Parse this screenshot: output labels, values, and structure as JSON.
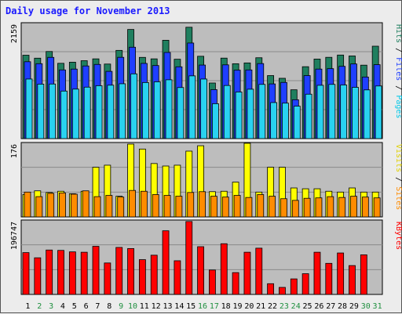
{
  "chart_data": [
    {
      "type": "bar",
      "title": "Daily usage for November 2013",
      "panel": "pages-files-hits",
      "ymax_label": "2159",
      "ylim": [
        0,
        2159
      ],
      "grid": true,
      "right_labels": [
        "Pages",
        "Files",
        "Hits"
      ],
      "categories": [
        "1",
        "2",
        "3",
        "4",
        "5",
        "6",
        "7",
        "8",
        "9",
        "10",
        "11",
        "12",
        "13",
        "14",
        "15",
        "16",
        "17",
        "18",
        "19",
        "20",
        "21",
        "22",
        "23",
        "24",
        "25",
        "26",
        "27",
        "28",
        "29",
        "30",
        "31"
      ],
      "series": [
        {
          "name": "Hits",
          "color": "#1f7f5f",
          "values": [
            1575,
            1519,
            1645,
            1422,
            1443,
            1471,
            1506,
            1408,
            1666,
            2061,
            1534,
            1506,
            1857,
            1499,
            2103,
            1555,
            1050,
            1520,
            1414,
            1429,
            1527,
            1190,
            1139,
            922,
            1358,
            1502,
            1535,
            1578,
            1561,
            1387,
            1745
          ]
        },
        {
          "name": "Files",
          "color": "#1f3fff",
          "values": [
            1452,
            1415,
            1534,
            1297,
            1313,
            1372,
            1401,
            1270,
            1535,
            1726,
            1420,
            1380,
            1627,
            1356,
            1805,
            1389,
            925,
            1393,
            1293,
            1297,
            1417,
            1033,
            1061,
            734,
            1190,
            1313,
            1321,
            1365,
            1410,
            1163,
            1396
          ]
        },
        {
          "name": "Pages",
          "color": "#29d2f0",
          "values": [
            1125,
            1029,
            1031,
            898,
            935,
            972,
            999,
            1009,
            1036,
            1223,
            1059,
            1072,
            1111,
            965,
            1185,
            1125,
            659,
            1003,
            880,
            933,
            1024,
            681,
            670,
            613,
            839,
            1007,
            1024,
            1013,
            968,
            920,
            994
          ]
        }
      ]
    },
    {
      "type": "bar",
      "panel": "sites-visits",
      "ymax_label": "176",
      "ylim": [
        0,
        176
      ],
      "grid": true,
      "right_labels": [
        "Sites",
        "Visits"
      ],
      "categories": [
        "1",
        "2",
        "3",
        "4",
        "5",
        "6",
        "7",
        "8",
        "9",
        "10",
        "11",
        "12",
        "13",
        "14",
        "15",
        "16",
        "17",
        "18",
        "19",
        "20",
        "21",
        "22",
        "23",
        "24",
        "25",
        "26",
        "27",
        "28",
        "29",
        "30",
        "31"
      ],
      "series": [
        {
          "name": "Visits",
          "color": "#ffff00",
          "values": [
            54,
            63,
            59,
            62,
            56,
            62,
            120,
            125,
            50,
            176,
            164,
            129,
            123,
            125,
            159,
            172,
            61,
            62,
            84,
            178,
            60,
            120,
            120,
            70,
            68,
            68,
            62,
            60,
            70,
            60,
            60
          ]
        },
        {
          "name": "Sites",
          "color": "#ff8c00",
          "values": [
            60,
            49,
            57,
            58,
            55,
            63,
            49,
            52,
            48,
            64,
            62,
            54,
            52,
            50,
            59,
            61,
            50,
            48,
            52,
            47,
            54,
            50,
            44,
            40,
            45,
            46,
            49,
            47,
            50,
            48,
            46
          ]
        }
      ]
    },
    {
      "type": "bar",
      "panel": "kbytes",
      "ymax_label": "196747",
      "ylim": [
        0,
        196747
      ],
      "grid": true,
      "right_labels": [
        "KBytes"
      ],
      "categories": [
        "1",
        "2",
        "3",
        "4",
        "5",
        "6",
        "7",
        "8",
        "9",
        "10",
        "11",
        "12",
        "13",
        "14",
        "15",
        "16",
        "17",
        "18",
        "19",
        "20",
        "21",
        "22",
        "23",
        "24",
        "25",
        "26",
        "27",
        "28",
        "29",
        "30",
        "31"
      ],
      "series": [
        {
          "name": "KBytes",
          "color": "#ff0000",
          "values": [
            113000,
            99000,
            120000,
            119000,
            115000,
            114000,
            130000,
            85000,
            127000,
            124000,
            94000,
            106000,
            172000,
            91000,
            197000,
            129000,
            66000,
            137000,
            59000,
            114000,
            125000,
            29000,
            19000,
            42000,
            56000,
            114000,
            84000,
            112000,
            78000,
            107000,
            0
          ]
        }
      ]
    }
  ]
}
